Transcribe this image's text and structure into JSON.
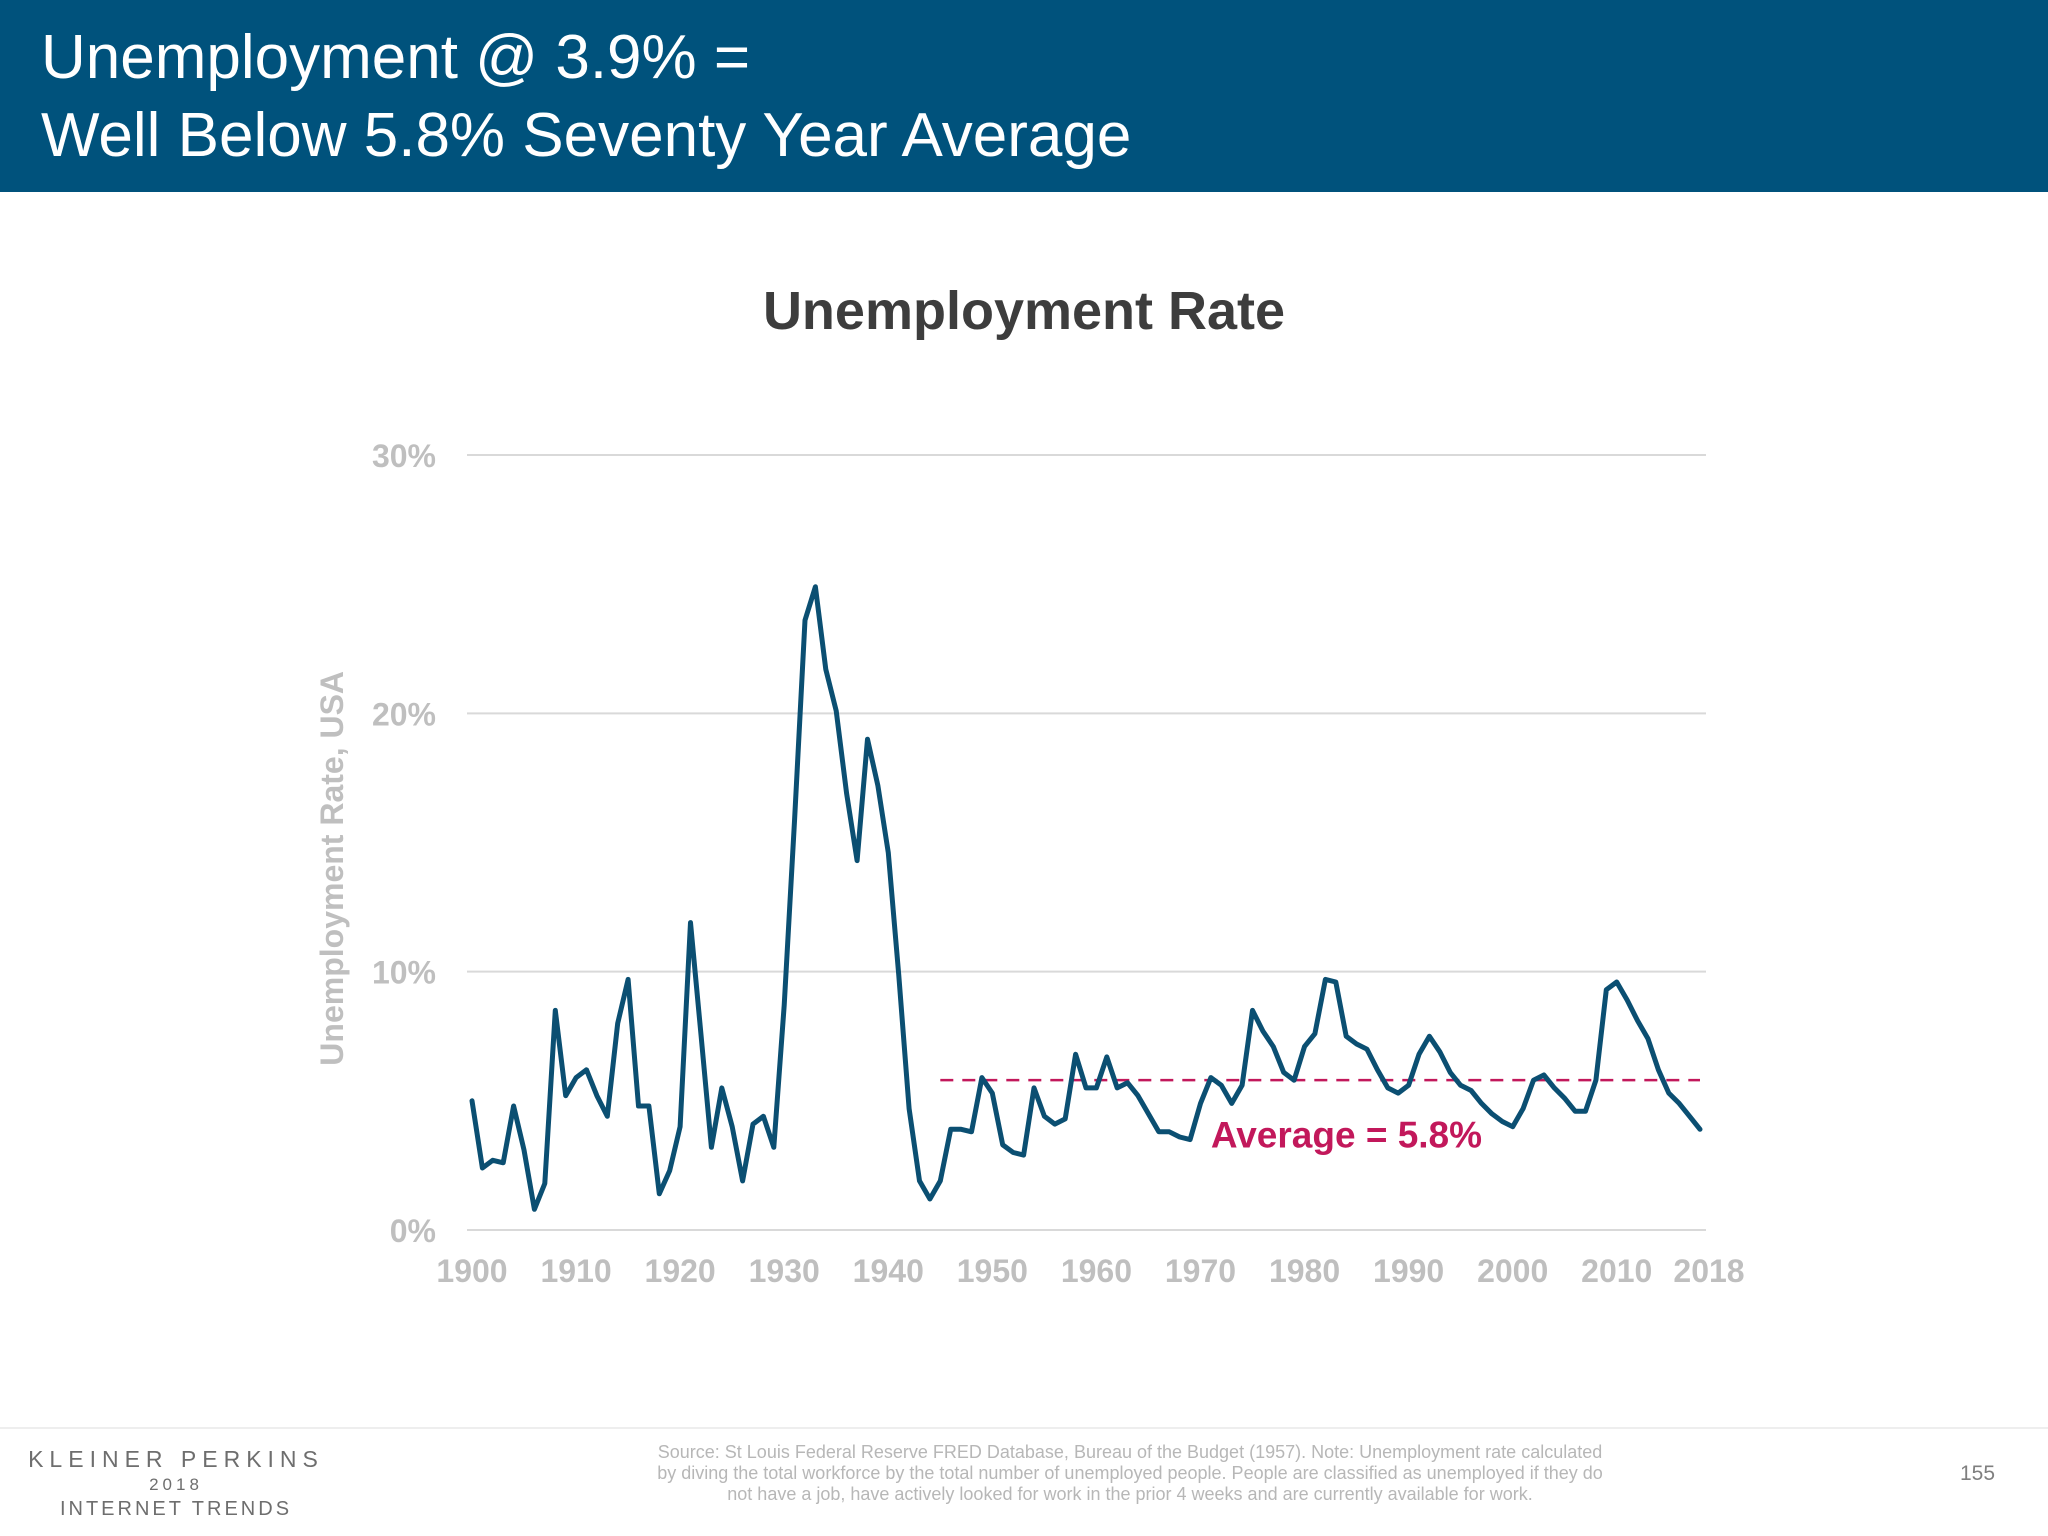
{
  "header": {
    "line1": "Unemployment @ 3.9% =",
    "line2": "Well Below 5.8% Seventy Year Average"
  },
  "footer": {
    "brand_line1": "KLEINER PERKINS",
    "brand_line2": "2018",
    "brand_line3": "INTERNET TRENDS",
    "source_line1": "Source: St Louis Federal Reserve FRED Database, Bureau of the Budget (1957). Note: Unemployment rate calculated",
    "source_line2": "by diving the total workforce by the total number of unemployed people. People are classified as unemployed if they do",
    "source_line3": "not have a job, have actively looked for work in the prior 4 weeks and are currently available for work.",
    "page_number": "155"
  },
  "colors": {
    "header_bg": "#00527c",
    "series_line": "#0b4f72",
    "average_line": "#c2185b",
    "axis_text": "#bfbfbf",
    "grid": "#d9d9d9"
  },
  "chart_data": {
    "type": "line",
    "title": "Unemployment Rate",
    "ylabel": "Unemployment Rate, USA",
    "xlabel": "",
    "xlim": [
      1900,
      2018
    ],
    "ylim": [
      0,
      30
    ],
    "x_ticks": [
      "1900",
      "1910",
      "1920",
      "1930",
      "1940",
      "1950",
      "1960",
      "1970",
      "1980",
      "1990",
      "2000",
      "2010",
      "2018"
    ],
    "x_tick_values": [
      1900,
      1910,
      1920,
      1930,
      1940,
      1950,
      1960,
      1970,
      1980,
      1990,
      2000,
      2010,
      2018
    ],
    "y_ticks": [
      "0%",
      "10%",
      "20%",
      "30%"
    ],
    "y_tick_values": [
      0,
      10,
      20,
      30
    ],
    "grid": true,
    "legend": false,
    "average": {
      "value": 5.8,
      "label": "Average = 5.8%",
      "x_start": 1945,
      "x_end": 2018
    },
    "series": [
      {
        "x": [
          1900,
          1901,
          1902,
          1903,
          1904,
          1905,
          1906,
          1907,
          1908,
          1909,
          1910,
          1911,
          1912,
          1913,
          1914,
          1915,
          1916,
          1917,
          1918,
          1919,
          1920,
          1921,
          1922,
          1923,
          1924,
          1925,
          1926,
          1927,
          1928,
          1929,
          1930,
          1931,
          1932,
          1933,
          1934,
          1935,
          1936,
          1937,
          1938,
          1939,
          1940,
          1941,
          1942,
          1943,
          1944,
          1945,
          1946,
          1947,
          1948,
          1949,
          1950,
          1951,
          1952,
          1953,
          1954,
          1955,
          1956,
          1957,
          1958,
          1959,
          1960,
          1961,
          1962,
          1963,
          1964,
          1965,
          1966,
          1967,
          1968,
          1969,
          1970,
          1971,
          1972,
          1973,
          1974,
          1975,
          1976,
          1977,
          1978,
          1979,
          1980,
          1981,
          1982,
          1983,
          1984,
          1985,
          1986,
          1987,
          1988,
          1989,
          1990,
          1991,
          1992,
          1993,
          1994,
          1995,
          1996,
          1997,
          1998,
          1999,
          2000,
          2001,
          2002,
          2003,
          2004,
          2005,
          2006,
          2007,
          2008,
          2009,
          2010,
          2011,
          2012,
          2013,
          2014,
          2015,
          2016,
          2017,
          2018
        ],
        "values": [
          5.0,
          2.4,
          2.7,
          2.6,
          4.8,
          3.1,
          0.8,
          1.8,
          8.5,
          5.2,
          5.9,
          6.2,
          5.2,
          4.4,
          8.0,
          9.7,
          4.8,
          4.8,
          1.4,
          2.3,
          4.0,
          11.9,
          7.6,
          3.2,
          5.5,
          4.0,
          1.9,
          4.1,
          4.4,
          3.2,
          8.7,
          15.9,
          23.6,
          24.9,
          21.7,
          20.1,
          16.9,
          14.3,
          19.0,
          17.2,
          14.6,
          9.9,
          4.7,
          1.9,
          1.2,
          1.9,
          3.9,
          3.9,
          3.8,
          5.9,
          5.3,
          3.3,
          3.0,
          2.9,
          5.5,
          4.4,
          4.1,
          4.3,
          6.8,
          5.5,
          5.5,
          6.7,
          5.5,
          5.7,
          5.2,
          4.5,
          3.8,
          3.8,
          3.6,
          3.5,
          4.9,
          5.9,
          5.6,
          4.9,
          5.6,
          8.5,
          7.7,
          7.1,
          6.1,
          5.8,
          7.1,
          7.6,
          9.7,
          9.6,
          7.5,
          7.2,
          7.0,
          6.2,
          5.5,
          5.3,
          5.6,
          6.8,
          7.5,
          6.9,
          6.1,
          5.6,
          5.4,
          4.9,
          4.5,
          4.2,
          4.0,
          4.7,
          5.8,
          6.0,
          5.5,
          5.1,
          4.6,
          4.6,
          5.8,
          9.3,
          9.6,
          8.9,
          8.1,
          7.4,
          6.2,
          5.3,
          4.9,
          4.4,
          3.9
        ]
      }
    ]
  }
}
